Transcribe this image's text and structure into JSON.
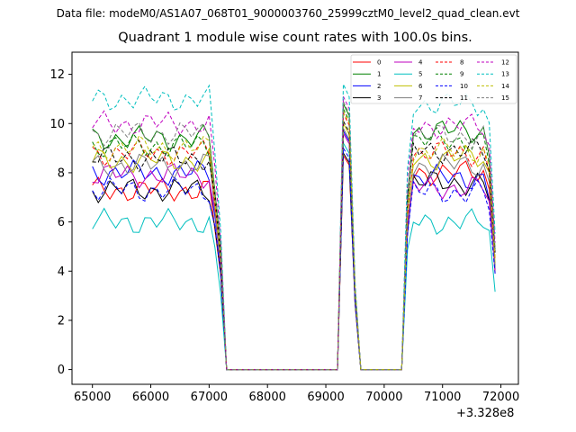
{
  "header": {
    "file_label": "Data file: modeM0/AS1A07_068T01_9000003760_25999cztM0_level2_quad_clean.evt"
  },
  "chart_data": {
    "type": "line",
    "title": "Quadrant 1 module wise count rates with 100.0s bins.",
    "xlabel": "",
    "ylabel": "",
    "x_offset_label": "+3.328e8",
    "xlim": [
      64650,
      72300
    ],
    "ylim": [
      -0.6,
      12.9
    ],
    "xticks": [
      65000,
      66000,
      67000,
      68000,
      69000,
      70000,
      71000,
      72000
    ],
    "yticks": [
      0,
      2,
      4,
      6,
      8,
      10,
      12
    ],
    "grid": false,
    "legend_position": "top-right",
    "x_unit_note": "seconds (plus offset 3.328e8)",
    "bin_width_s": 100,
    "segments": [
      {
        "x_start": 65000,
        "x_end": 67200
      },
      {
        "x_start": 69220,
        "x_end": 69560
      },
      {
        "x_start": 70380,
        "x_end": 71900
      }
    ],
    "series": [
      {
        "name": "0",
        "color": "#ff0000",
        "dash": "solid",
        "base": [
          7.3,
          8.7,
          8.0
        ]
      },
      {
        "name": "1",
        "color": "#008000",
        "dash": "solid",
        "base": [
          9.4,
          10.8,
          9.7
        ]
      },
      {
        "name": "2",
        "color": "#0000ff",
        "dash": "solid",
        "base": [
          8.0,
          9.7,
          7.8
        ]
      },
      {
        "name": "3",
        "color": "#000000",
        "dash": "solid",
        "base": [
          7.3,
          8.8,
          7.6
        ]
      },
      {
        "name": "4",
        "color": "#bf00bf",
        "dash": "solid",
        "base": [
          7.9,
          9.6,
          7.4
        ]
      },
      {
        "name": "5",
        "color": "#00bfbf",
        "dash": "solid",
        "base": [
          6.0,
          9.2,
          6.0
        ]
      },
      {
        "name": "6",
        "color": "#bfbf00",
        "dash": "solid",
        "base": [
          8.5,
          10.0,
          8.6
        ]
      },
      {
        "name": "7",
        "color": "#808080",
        "dash": "solid",
        "base": [
          8.3,
          9.8,
          8.3
        ]
      },
      {
        "name": "8",
        "color": "#ff0000",
        "dash": "dashed",
        "base": [
          8.8,
          10.4,
          8.8
        ]
      },
      {
        "name": "9",
        "color": "#008000",
        "dash": "dashed",
        "base": [
          9.1,
          10.6,
          9.3
        ]
      },
      {
        "name": "10",
        "color": "#0000ff",
        "dash": "dashed",
        "base": [
          7.3,
          9.0,
          7.2
        ]
      },
      {
        "name": "11",
        "color": "#000000",
        "dash": "dashed",
        "base": [
          8.6,
          10.1,
          8.9
        ]
      },
      {
        "name": "12",
        "color": "#bf00bf",
        "dash": "dashed",
        "base": [
          10.0,
          11.1,
          9.9
        ]
      },
      {
        "name": "13",
        "color": "#00bfbf",
        "dash": "dashed",
        "base": [
          11.0,
          11.6,
          10.8
        ]
      },
      {
        "name": "14",
        "color": "#bfbf00",
        "dash": "dashed",
        "base": [
          9.0,
          10.5,
          8.9
        ]
      },
      {
        "name": "15",
        "color": "#808080",
        "dash": "dashed",
        "base": [
          9.6,
          10.9,
          9.5
        ]
      }
    ]
  }
}
